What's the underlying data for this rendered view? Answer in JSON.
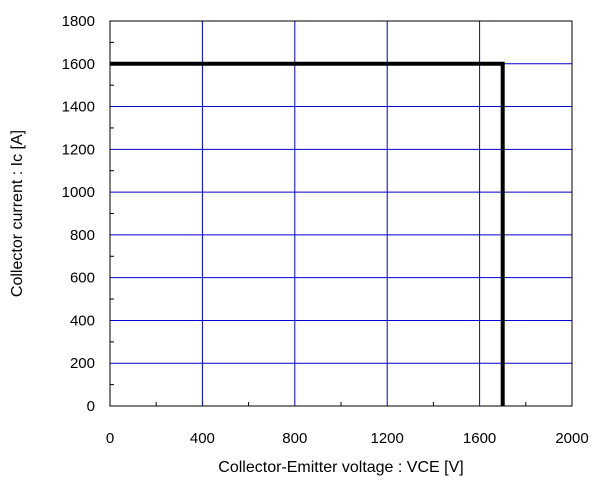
{
  "chart_data": {
    "type": "line",
    "title": "",
    "xlabel": "Collector-Emitter voltage : VCE [V]",
    "ylabel": "Collector current : Ic [A]",
    "xlim": [
      0,
      2000
    ],
    "ylim": [
      0,
      1800
    ],
    "x_ticks": [
      "0",
      "400",
      "800",
      "1200",
      "1600",
      "2000"
    ],
    "y_ticks": [
      "0",
      "200",
      "400",
      "600",
      "800",
      "1000",
      "1200",
      "1400",
      "1600",
      "1800"
    ],
    "grid": true,
    "colors": {
      "grid": "#0000cc",
      "series": "#000000"
    },
    "series": [
      {
        "x": [
          0,
          1700,
          1700
        ],
        "y": [
          1600,
          1600,
          0
        ]
      }
    ]
  }
}
